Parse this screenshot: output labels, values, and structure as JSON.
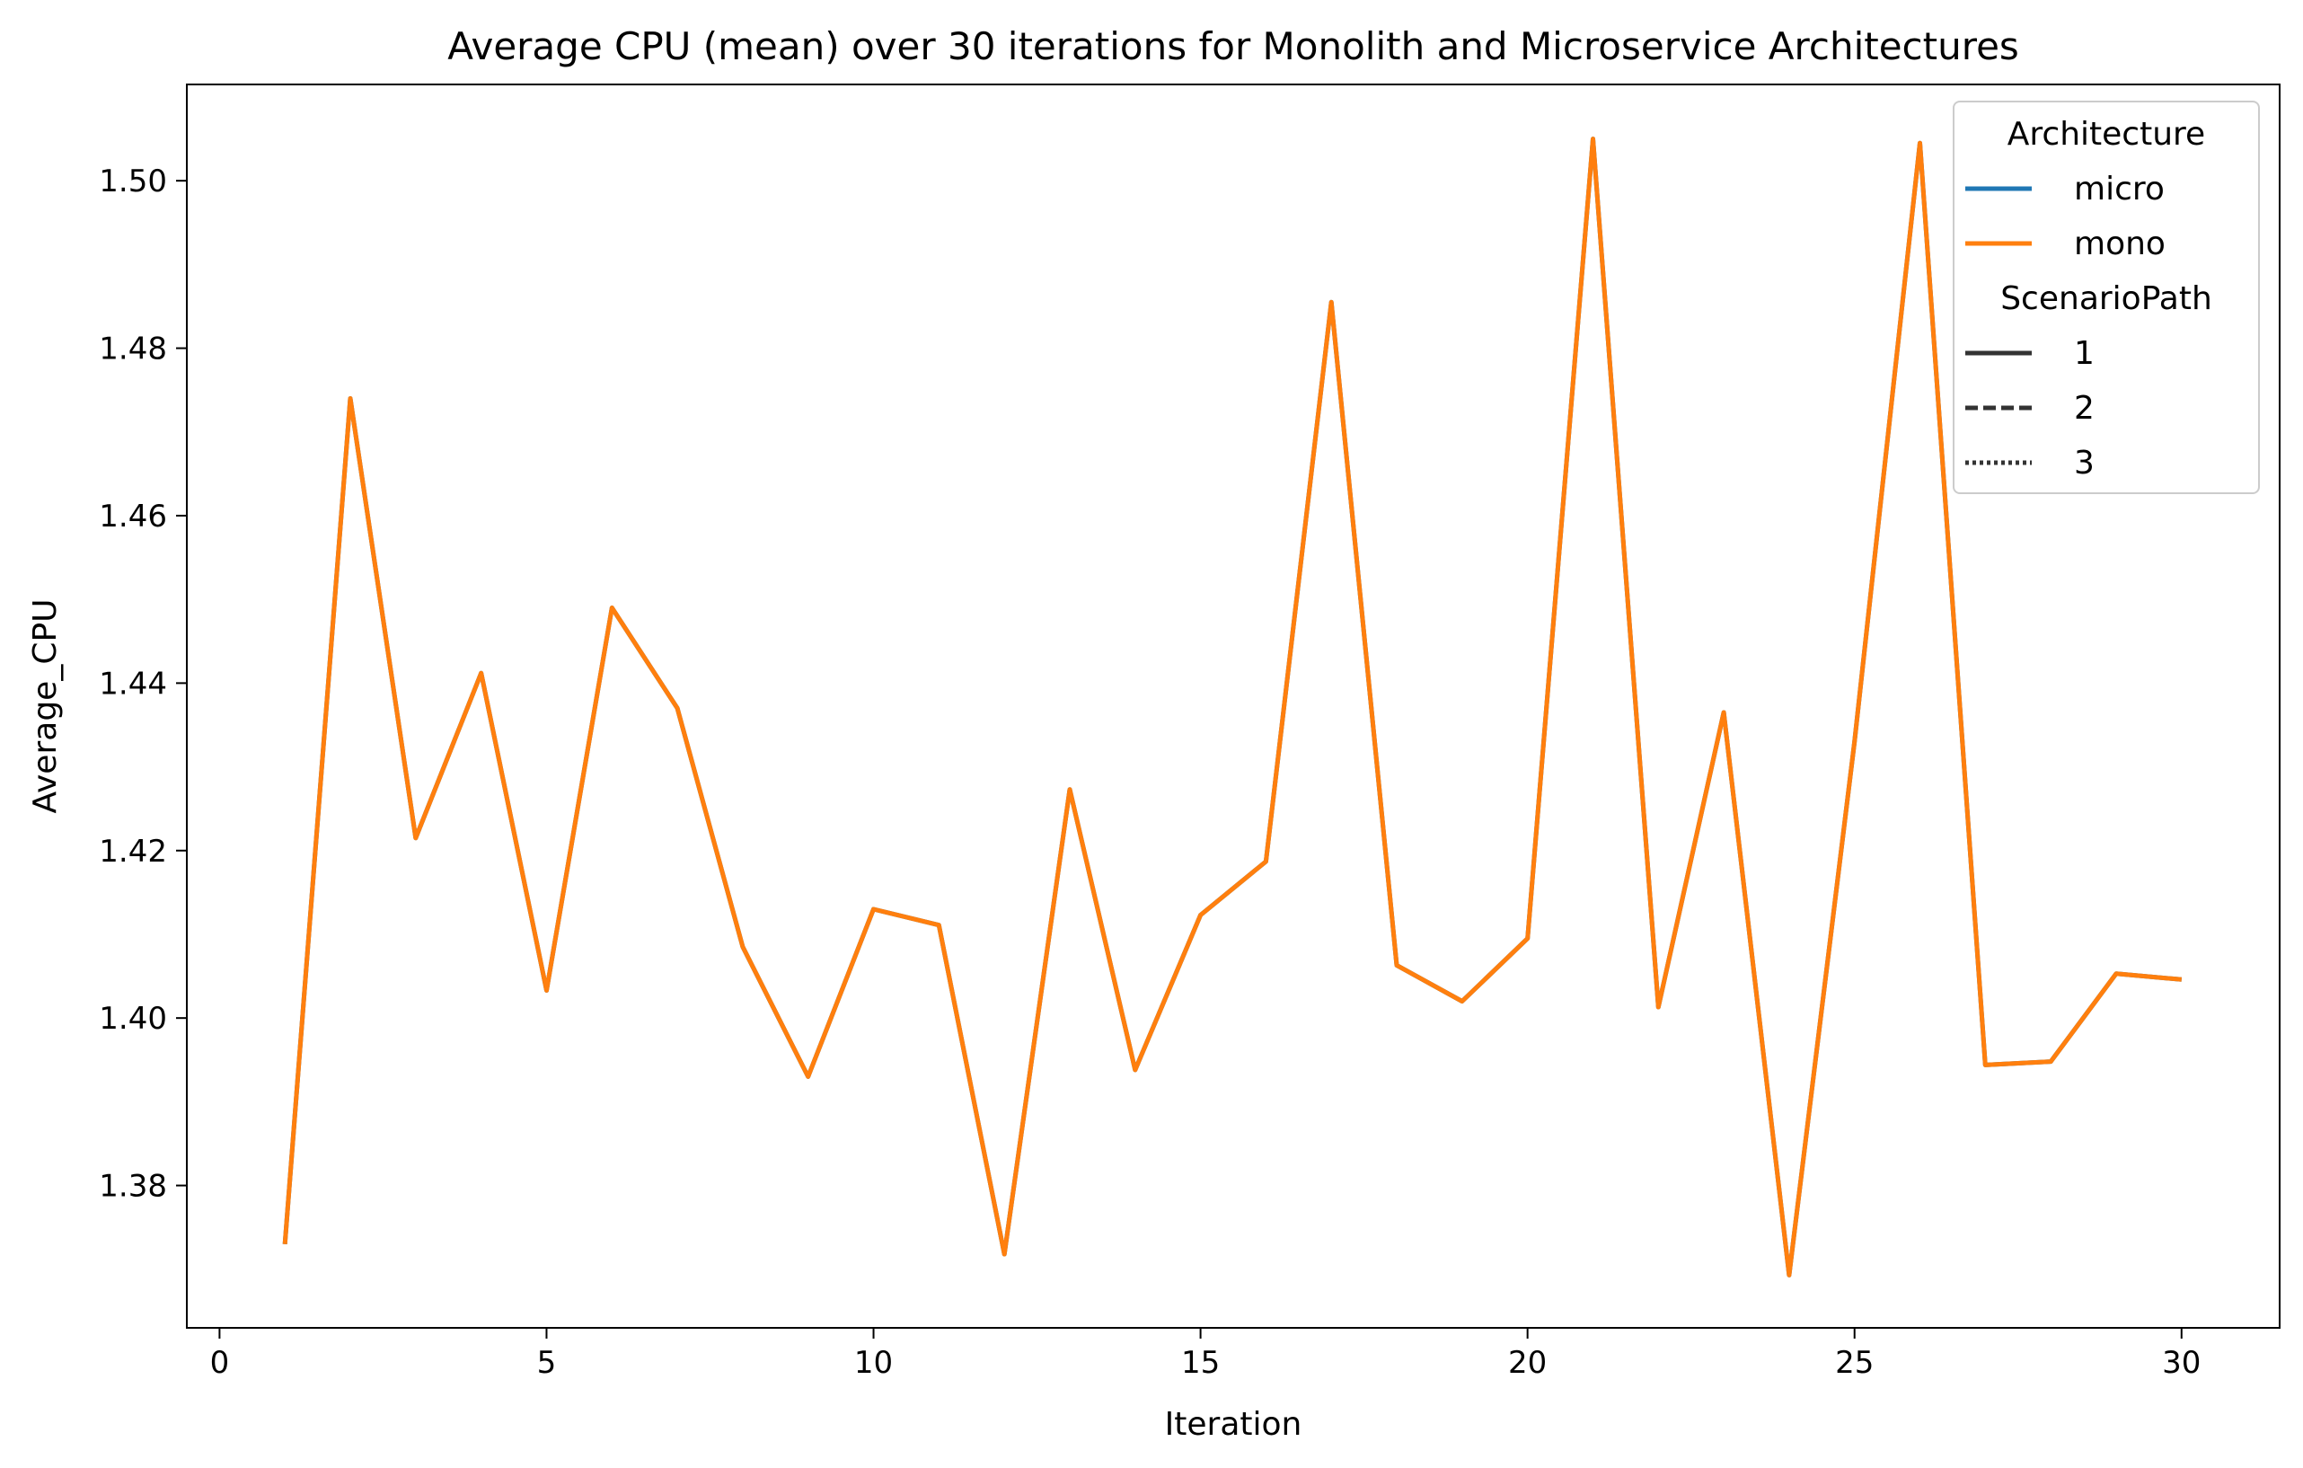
{
  "chart_data": {
    "type": "line",
    "title": "Average CPU (mean) over 30 iterations for Monolith and Microservice Architectures",
    "xlabel": "Iteration",
    "ylabel": "Average_CPU",
    "xlim": [
      -0.5,
      31.5
    ],
    "ylim": [
      1.363,
      1.5115
    ],
    "xticks": [
      0,
      5,
      10,
      15,
      20,
      25,
      30
    ],
    "xtick_labels": [
      "0",
      "5",
      "10",
      "15",
      "20",
      "25",
      "30"
    ],
    "yticks": [
      1.38,
      1.4,
      1.42,
      1.44,
      1.46,
      1.48,
      1.5
    ],
    "ytick_labels": [
      "1.38",
      "1.40",
      "1.42",
      "1.44",
      "1.46",
      "1.48",
      "1.50"
    ],
    "grid": false,
    "x": [
      1,
      2,
      3,
      4,
      5,
      6,
      7,
      8,
      9,
      10,
      11,
      12,
      13,
      14,
      15,
      16,
      17,
      18,
      19,
      20,
      21,
      22,
      23,
      24,
      25,
      26,
      27,
      28,
      29,
      30
    ],
    "series": [
      {
        "name": "micro",
        "color": "#1f77b4",
        "values": [
          1.373,
          1.474,
          1.4215,
          1.4412,
          1.4033,
          1.449,
          1.437,
          1.4085,
          1.393,
          1.413,
          1.4111,
          1.3718,
          1.4273,
          1.3938,
          1.4123,
          1.4187,
          1.4855,
          1.4063,
          1.402,
          1.4095,
          1.505,
          1.4013,
          1.4365,
          1.3693,
          1.433,
          1.5045,
          1.3944,
          1.3948,
          1.4053,
          1.4046
        ]
      },
      {
        "name": "mono",
        "color": "#ff7f0e",
        "values": [
          1.373,
          1.474,
          1.4215,
          1.4412,
          1.4033,
          1.449,
          1.437,
          1.4085,
          1.393,
          1.413,
          1.4111,
          1.3718,
          1.4273,
          1.3938,
          1.4123,
          1.4187,
          1.4855,
          1.4063,
          1.402,
          1.4095,
          1.505,
          1.4013,
          1.4365,
          1.3693,
          1.433,
          1.5045,
          1.3944,
          1.3948,
          1.4053,
          1.4046
        ]
      }
    ],
    "legend": {
      "placement": "top-right",
      "groups": [
        {
          "title": "Architecture",
          "entries": [
            {
              "label": "micro",
              "color": "#1f77b4",
              "style": "solid"
            },
            {
              "label": "mono",
              "color": "#ff7f0e",
              "style": "solid"
            }
          ]
        },
        {
          "title": "ScenarioPath",
          "entries": [
            {
              "label": "1",
              "color": "#333333",
              "style": "solid"
            },
            {
              "label": "2",
              "color": "#333333",
              "style": "dashed"
            },
            {
              "label": "3",
              "color": "#333333",
              "style": "dotted"
            }
          ]
        }
      ]
    }
  }
}
